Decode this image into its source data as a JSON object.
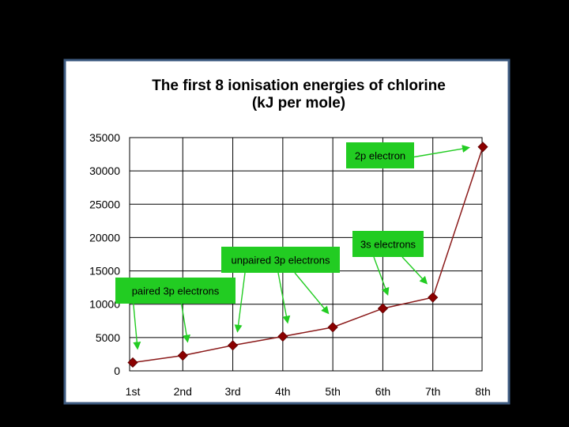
{
  "chart_data": {
    "type": "line",
    "title_line1": "The first 8 ionisation energies of chlorine",
    "title_line2": "(kJ per mole)",
    "categories": [
      "1st",
      "2nd",
      "3rd",
      "4th",
      "5th",
      "6th",
      "7th",
      "8th"
    ],
    "series": [
      {
        "values": [
          1251,
          2298,
          3822,
          5159,
          6542,
          9362,
          11018,
          33604
        ]
      }
    ],
    "ylim": [
      0,
      35000
    ],
    "yticks": [
      0,
      5000,
      10000,
      15000,
      20000,
      25000,
      30000,
      35000
    ],
    "ytick_labels": [
      "0",
      "5000",
      "10000",
      "15000",
      "20000",
      "25000",
      "30000",
      "35000"
    ],
    "grid": true,
    "line_color": "#8b1a1a",
    "marker_color": "#8b0000",
    "callout_color": "#22cc22",
    "annotations": [
      {
        "text": "paired 3p electrons",
        "targets": [
          0,
          1
        ]
      },
      {
        "text": "unpaired 3p electrons",
        "targets": [
          2,
          3,
          4
        ]
      },
      {
        "text": "3s electrons",
        "targets": [
          5,
          6
        ]
      },
      {
        "text": "2p electron",
        "targets": [
          7
        ]
      }
    ]
  }
}
